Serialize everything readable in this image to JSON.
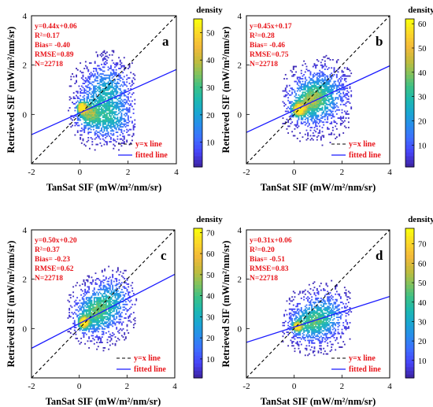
{
  "chart_data": [
    {
      "type": "heatmap",
      "panel_label": "a",
      "xlabel": "TanSat SIF (mW/m²/nm/sr)",
      "ylabel": "Retrieved SIF (mW/m²/nm/sr)",
      "xlim": [
        -2,
        4
      ],
      "ylim": [
        -2,
        4
      ],
      "x_ticks": [
        -2,
        0,
        2,
        4
      ],
      "y_ticks": [
        0,
        2,
        4
      ],
      "stats": [
        "y=0.44x+0.06",
        "R²=0.17",
        "Bias= -0.40",
        "RMSE=0.89",
        "N=22718"
      ],
      "fit": {
        "slope": 0.44,
        "intercept": 0.06
      },
      "legend": [
        "y=x line",
        "fitted line"
      ],
      "colorbar": {
        "title": "density",
        "ticks": [
          10,
          20,
          30,
          40,
          50
        ],
        "max": 55
      },
      "density_clusters": [
        {
          "x": 0.05,
          "y": 0.25,
          "sx": 0.12,
          "sy": 0.15,
          "w": 1.0
        },
        {
          "x": 0.3,
          "y": 0.0,
          "sx": 0.3,
          "sy": 0.35,
          "w": 0.5
        },
        {
          "x": 1.1,
          "y": 0.9,
          "sx": 0.6,
          "sy": 0.7,
          "w": 0.4
        },
        {
          "x": 1.2,
          "y": -0.3,
          "sx": 0.6,
          "sy": 0.45,
          "w": 0.35
        },
        {
          "x": 0.9,
          "y": 0.3,
          "sx": 0.9,
          "sy": 1.1,
          "w": 0.12
        }
      ],
      "x_range": [
        -0.5,
        2.3
      ],
      "y_range": [
        -1.8,
        3.0
      ]
    },
    {
      "type": "heatmap",
      "panel_label": "b",
      "xlabel": "TanSat SIF (mW/m²/nm/sr)",
      "ylabel": "Retrieved SIF (mW/m²/nm/sr)",
      "xlim": [
        -2,
        4
      ],
      "ylim": [
        -2,
        4
      ],
      "x_ticks": [
        -2,
        0,
        2,
        4
      ],
      "y_ticks": [
        0,
        2,
        4
      ],
      "stats": [
        "y=0.45x+0.17",
        "R²=0.28",
        "Bias= -0.46",
        "RMSE=0.75",
        "N=22718"
      ],
      "fit": {
        "slope": 0.45,
        "intercept": 0.17
      },
      "legend": [
        "y=x line",
        "fitted line"
      ],
      "colorbar": {
        "title": "density",
        "ticks": [
          10,
          20,
          30,
          40,
          50,
          60
        ],
        "max": 62
      },
      "density_clusters": [
        {
          "x": 0.15,
          "y": 0.15,
          "sx": 0.18,
          "sy": 0.18,
          "w": 1.0
        },
        {
          "x": 0.6,
          "y": 0.5,
          "sx": 0.5,
          "sy": 0.5,
          "w": 0.5
        },
        {
          "x": 1.3,
          "y": 0.9,
          "sx": 0.6,
          "sy": 0.6,
          "w": 0.3
        },
        {
          "x": 0.9,
          "y": 0.4,
          "sx": 0.9,
          "sy": 1.0,
          "w": 0.15
        }
      ],
      "x_range": [
        -0.5,
        2.4
      ],
      "y_range": [
        -1.5,
        3.0
      ]
    },
    {
      "type": "heatmap",
      "panel_label": "c",
      "xlabel": "TanSat SIF (mW/m²/nm/sr)",
      "ylabel": "Retrieved SIF (mW/m²/nm/sr)",
      "xlim": [
        -2,
        4
      ],
      "ylim": [
        -2,
        4
      ],
      "x_ticks": [
        -2,
        0,
        2,
        4
      ],
      "y_ticks": [
        0,
        2,
        4
      ],
      "stats": [
        "y=0.50x+0.20",
        "R²=0.37",
        "Bias= -0.23",
        "RMSE=0.62",
        "N=22718"
      ],
      "fit": {
        "slope": 0.5,
        "intercept": 0.2
      },
      "legend": [
        "y=x line",
        "fitted line"
      ],
      "colorbar": {
        "title": "density",
        "ticks": [
          10,
          20,
          30,
          40,
          50,
          60,
          70
        ],
        "max": 72
      },
      "density_clusters": [
        {
          "x": 0.15,
          "y": 0.2,
          "sx": 0.15,
          "sy": 0.18,
          "w": 1.0
        },
        {
          "x": 0.6,
          "y": 0.6,
          "sx": 0.5,
          "sy": 0.5,
          "w": 0.5
        },
        {
          "x": 1.4,
          "y": 1.2,
          "sx": 0.5,
          "sy": 0.55,
          "w": 0.35
        },
        {
          "x": 0.9,
          "y": 0.6,
          "sx": 0.8,
          "sy": 0.9,
          "w": 0.14
        }
      ],
      "x_range": [
        -0.5,
        2.4
      ],
      "y_range": [
        -1.2,
        2.6
      ]
    },
    {
      "type": "heatmap",
      "panel_label": "d",
      "xlabel": "TanSat SIF (mW/m²/nm/sr)",
      "ylabel": "Retrieved SIF (mW/m²/nm/sr)",
      "xlim": [
        -2,
        4
      ],
      "ylim": [
        -2,
        4
      ],
      "x_ticks": [
        -2,
        0,
        2,
        4
      ],
      "y_ticks": [
        0,
        2,
        4
      ],
      "stats": [
        "y=0.31x+0.06",
        "R²=0.20",
        "Bias= -0.51",
        "RMSE=0.83",
        "N=22718"
      ],
      "fit": {
        "slope": 0.31,
        "intercept": 0.06
      },
      "legend": [
        "y=x line",
        "fitted line"
      ],
      "colorbar": {
        "title": "density",
        "ticks": [
          10,
          20,
          30,
          40,
          50,
          60,
          70
        ],
        "max": 78
      },
      "density_clusters": [
        {
          "x": 0.1,
          "y": 0.05,
          "sx": 0.13,
          "sy": 0.13,
          "w": 1.0
        },
        {
          "x": 0.6,
          "y": 0.2,
          "sx": 0.55,
          "sy": 0.45,
          "w": 0.45
        },
        {
          "x": 1.4,
          "y": 0.6,
          "sx": 0.55,
          "sy": 0.55,
          "w": 0.3
        },
        {
          "x": 0.9,
          "y": 0.3,
          "sx": 0.9,
          "sy": 0.9,
          "w": 0.12
        }
      ],
      "x_range": [
        -0.5,
        2.4
      ],
      "y_range": [
        -1.5,
        2.4
      ]
    }
  ],
  "colors": {
    "stats_text": "#e8141a",
    "fit_line": "#1a1aff",
    "identity_line": "#000000",
    "colormap": [
      "#3e26a8",
      "#4743f8",
      "#3f6cff",
      "#2a8bee",
      "#1aa6d2",
      "#1cb8b0",
      "#3dc186",
      "#85c25c",
      "#c5bb3c",
      "#f2b93a",
      "#fbd42a",
      "#f9fb0e"
    ]
  }
}
